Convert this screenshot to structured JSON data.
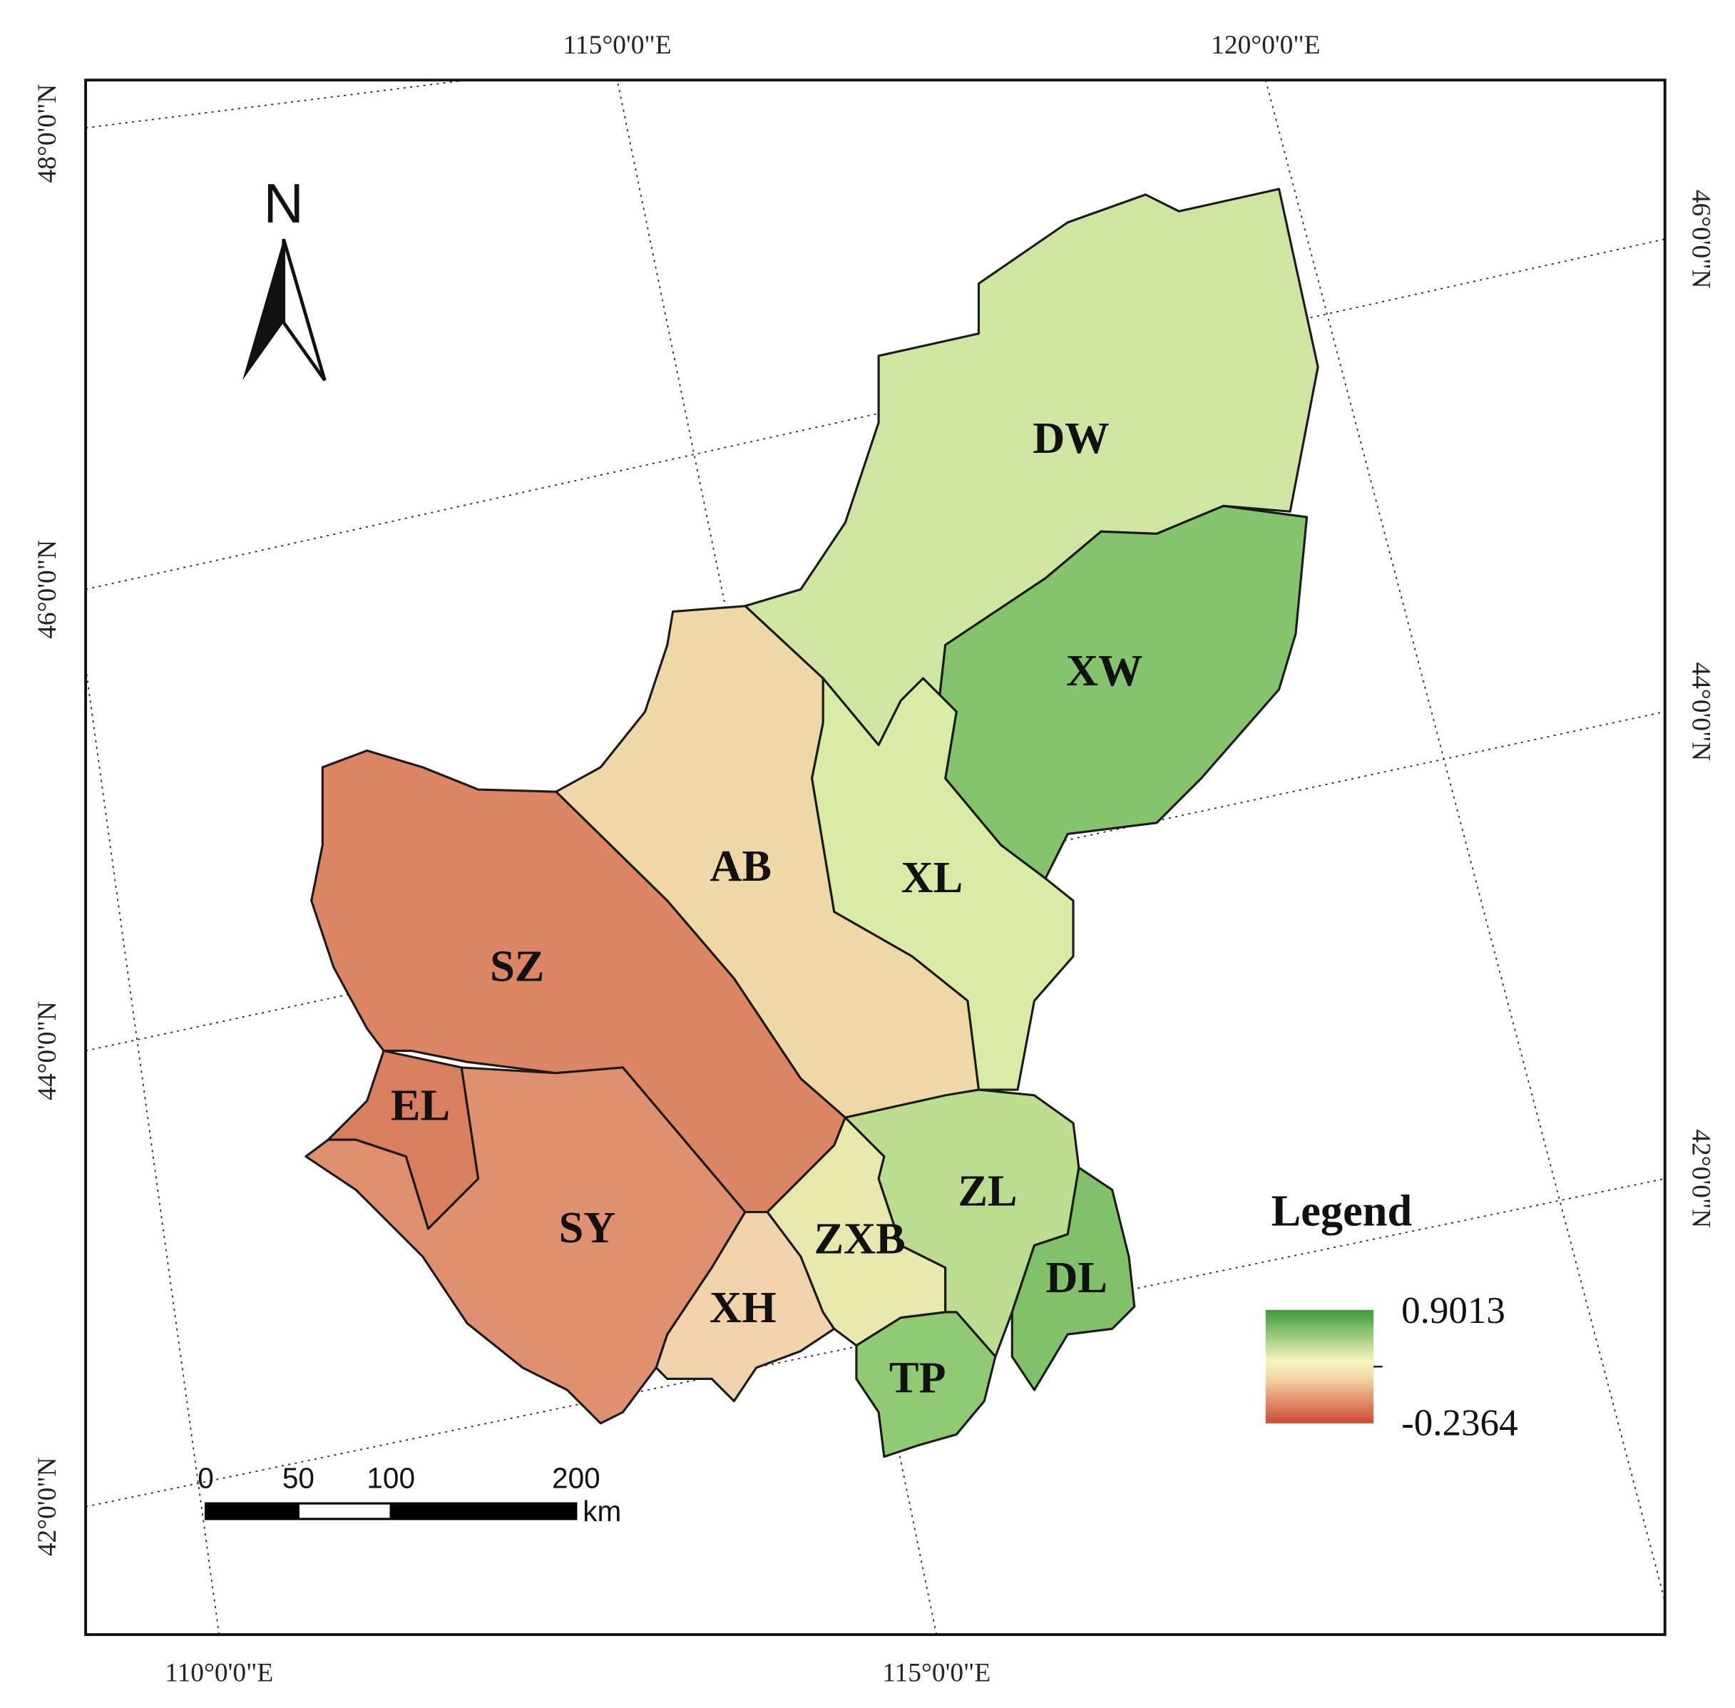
{
  "graticule": {
    "top": [
      "115°0'0\"E",
      "120°0'0\"E"
    ],
    "bottom": [
      "110°0'0\"E",
      "115°0'0\"E"
    ],
    "left": [
      "48°0'0\"N",
      "46°0'0\"N",
      "44°0'0\"N",
      "42°0'0\"N"
    ],
    "right": [
      "46°0'0\"N",
      "44°0'0\"N",
      "42°0'0\"N"
    ]
  },
  "north_arrow": "N",
  "regions": [
    "DW",
    "XW",
    "XL",
    "AB",
    "SZ",
    "EL",
    "SY",
    "XH",
    "ZXB",
    "ZL",
    "DL",
    "TP"
  ],
  "legend": {
    "title": "Legend",
    "max": 0.9013,
    "min": -0.2364
  },
  "scale_bar": {
    "ticks": [
      0,
      50,
      100,
      200
    ],
    "unit": "km"
  }
}
